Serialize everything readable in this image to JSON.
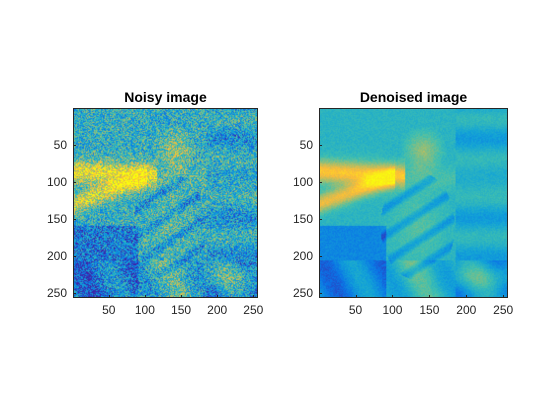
{
  "panels": [
    {
      "id": "noisy",
      "title": "Noisy image",
      "xticks": [
        "50",
        "100",
        "150",
        "200",
        "250"
      ],
      "yticks": [
        "50",
        "100",
        "150",
        "200",
        "250"
      ],
      "xtick_values": [
        50,
        100,
        150,
        200,
        250
      ],
      "ytick_values": [
        50,
        100,
        150,
        200,
        250
      ],
      "xlim": [
        0.5,
        256.5
      ],
      "ylim": [
        0.5,
        256.5
      ],
      "noise": "high"
    },
    {
      "id": "denoised",
      "title": "Denoised image",
      "xticks": [
        "50",
        "100",
        "150",
        "200",
        "250"
      ],
      "yticks": [
        "50",
        "100",
        "150",
        "200",
        "250"
      ],
      "xtick_values": [
        50,
        100,
        150,
        200,
        250
      ],
      "ytick_values": [
        50,
        100,
        150,
        200,
        250
      ],
      "xlim": [
        0.5,
        256.5
      ],
      "ylim": [
        0.5,
        256.5
      ],
      "noise": "low"
    }
  ],
  "colormap": [
    "#3e26a8",
    "#0b72e6",
    "#12a3d7",
    "#3fbfb0",
    "#a5be6c",
    "#fdbb39",
    "#f9fb0e"
  ]
}
